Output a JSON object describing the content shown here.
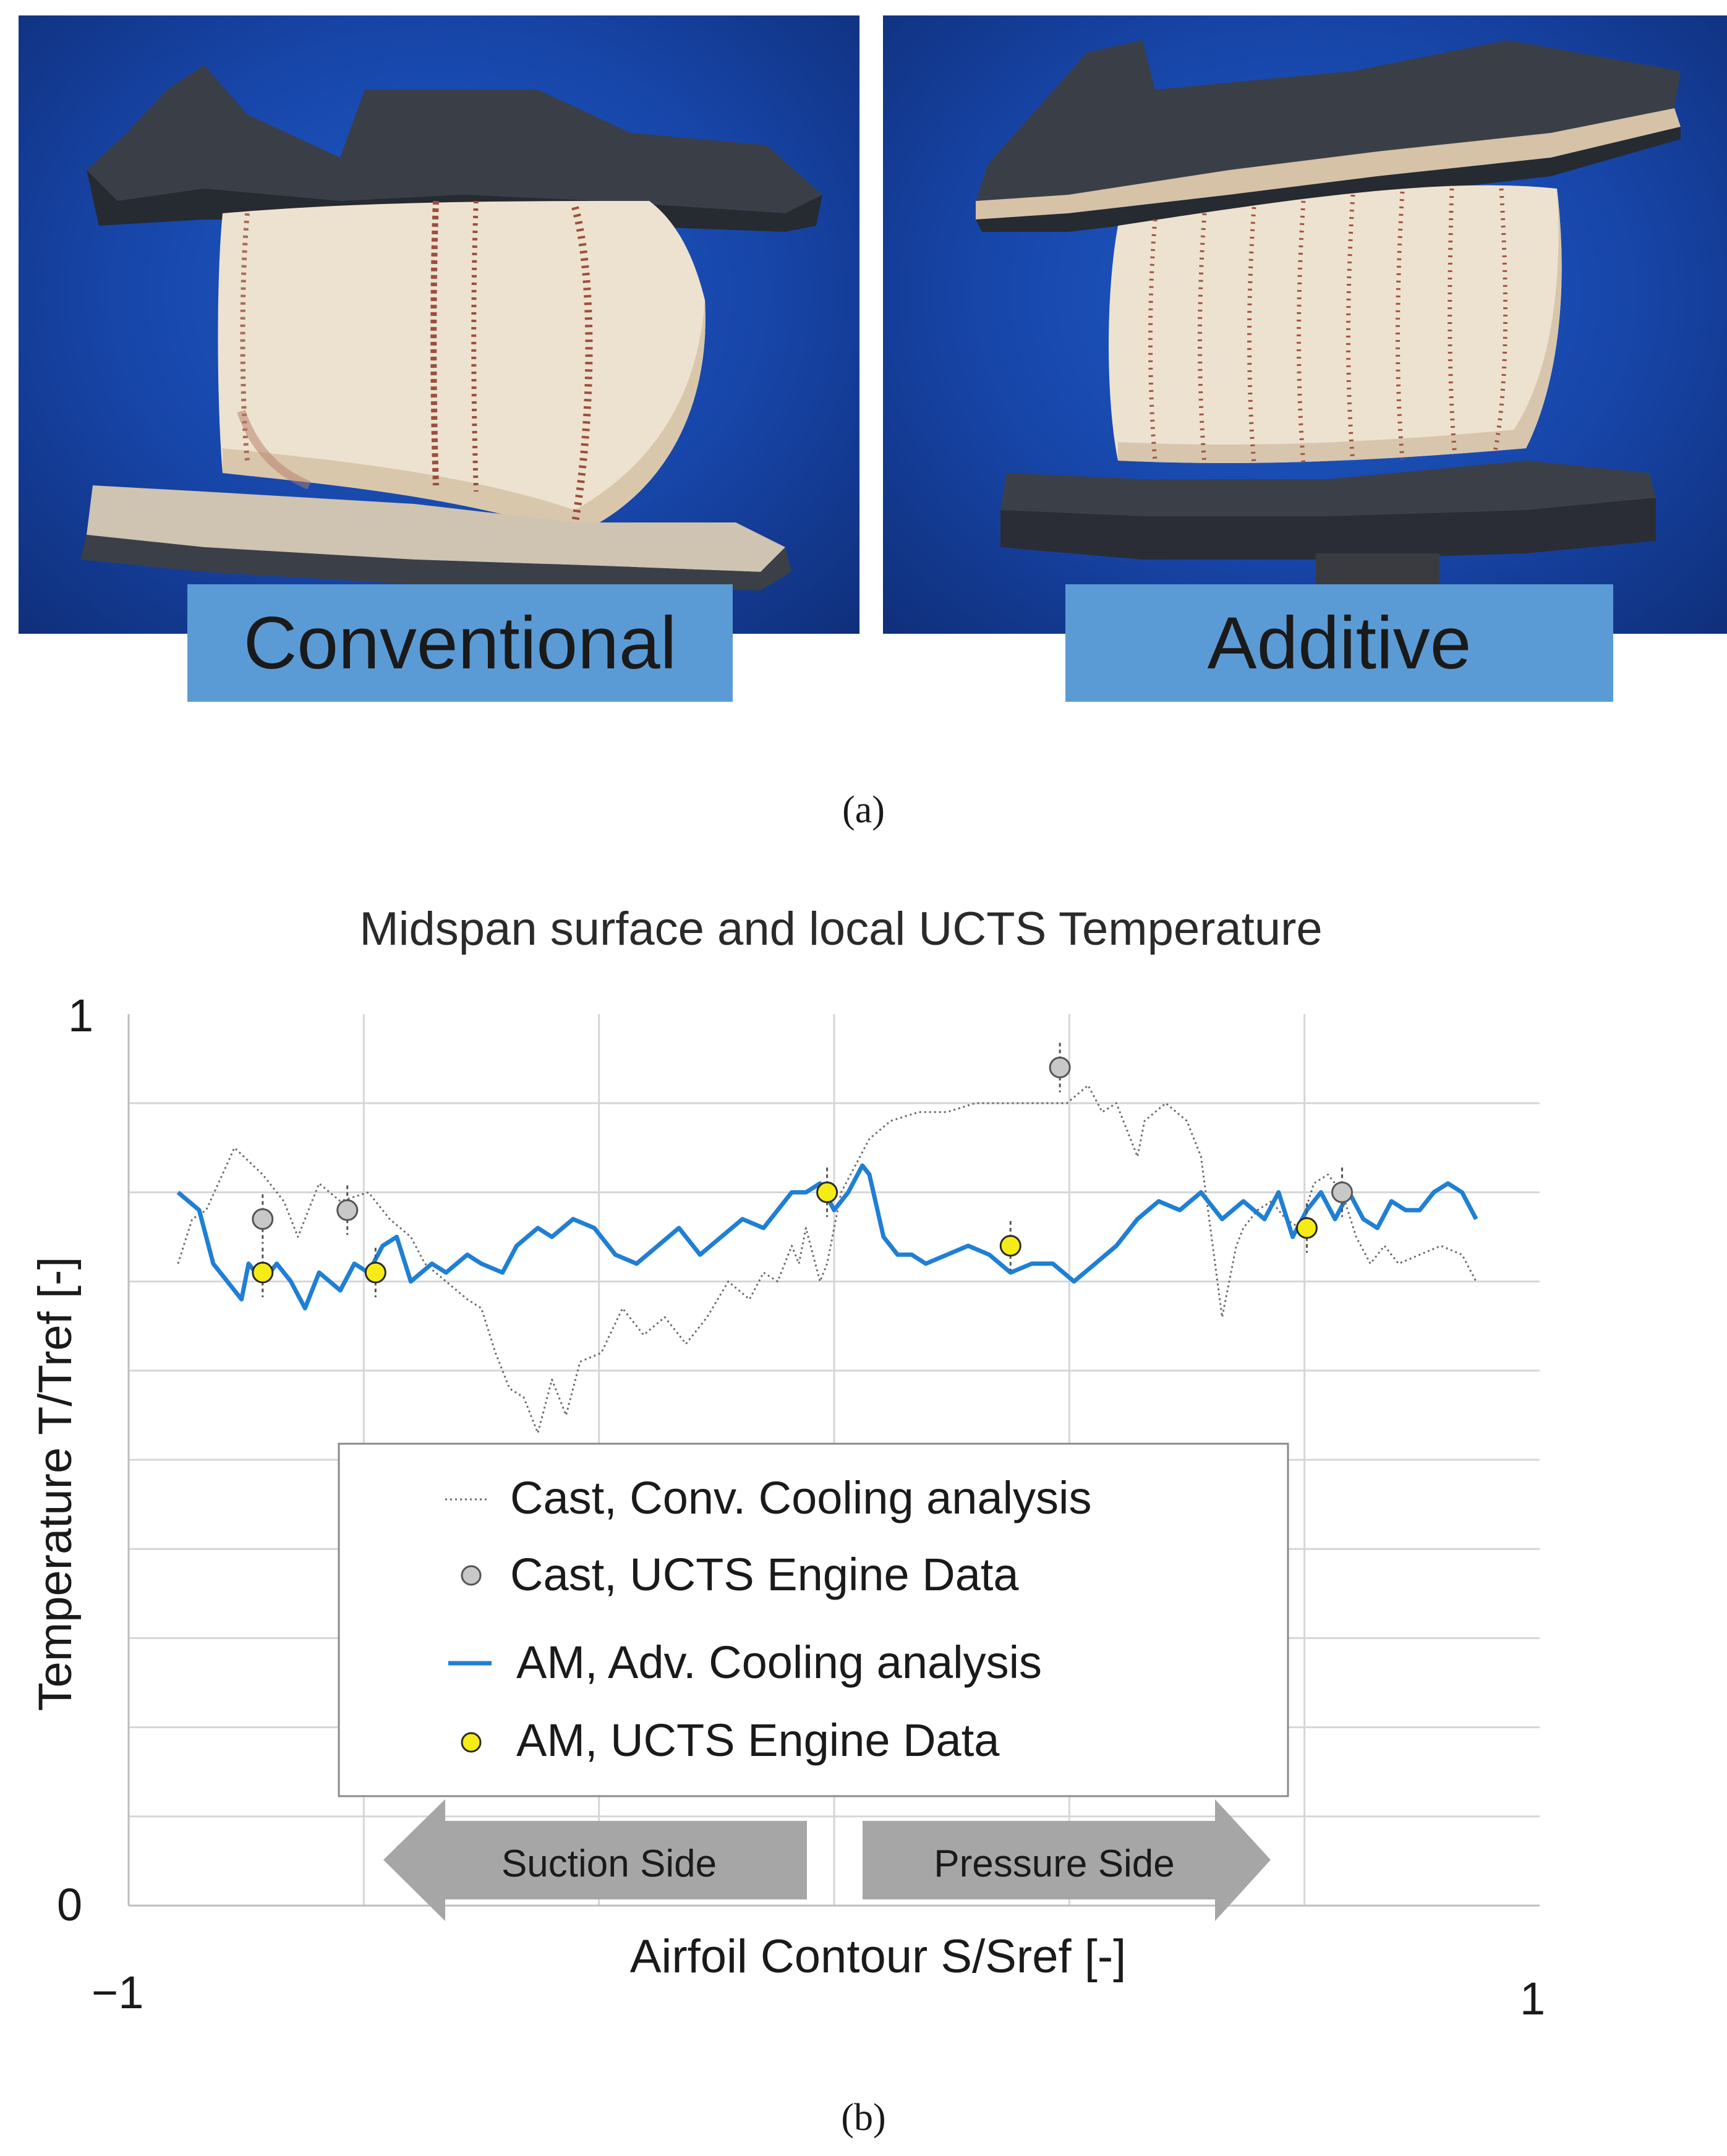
{
  "panel_a": {
    "labels": [
      "Conventional",
      "Additive"
    ],
    "caption": "(a)"
  },
  "panel_b": {
    "caption": "(b)"
  },
  "chart_data": {
    "type": "line",
    "title": "Midspan surface and local UCTS Temperature",
    "xlabel": "Airfoil Contour S/Sref [-]",
    "ylabel": "Temperature T/Tref [-]",
    "xlim": [
      -1,
      1
    ],
    "ylim": [
      0,
      1
    ],
    "x_tick_labels": [
      "−1",
      "1"
    ],
    "y_tick_labels": [
      "0",
      "1"
    ],
    "grid": true,
    "legend_position": "lower-center",
    "annotations": [
      {
        "text": "Suction Side",
        "direction": "left"
      },
      {
        "text": "Pressure Side",
        "direction": "right"
      }
    ],
    "series": [
      {
        "name": "Cast, Conv. Cooling analysis",
        "kind": "line",
        "style": "dotted",
        "color": "#6b6b6b",
        "x": [
          -0.93,
          -0.91,
          -0.89,
          -0.85,
          -0.81,
          -0.78,
          -0.76,
          -0.73,
          -0.7,
          -0.66,
          -0.63,
          -0.6,
          -0.58,
          -0.55,
          -0.52,
          -0.5,
          -0.48,
          -0.46,
          -0.44,
          -0.42,
          -0.4,
          -0.38,
          -0.36,
          -0.33,
          -0.3,
          -0.27,
          -0.24,
          -0.21,
          -0.18,
          -0.15,
          -0.12,
          -0.1,
          -0.08,
          -0.06,
          -0.05,
          -0.04,
          -0.03,
          -0.02,
          -0.01,
          0.0,
          0.01,
          0.03,
          0.05,
          0.08,
          0.12,
          0.16,
          0.2,
          0.25,
          0.3,
          0.33,
          0.36,
          0.38,
          0.4,
          0.42,
          0.43,
          0.44,
          0.47,
          0.5,
          0.52,
          0.54,
          0.55,
          0.56,
          0.57,
          0.58,
          0.6,
          0.62,
          0.64,
          0.66,
          0.68,
          0.7,
          0.72,
          0.74,
          0.76,
          0.78,
          0.8,
          0.83,
          0.86,
          0.89,
          0.91
        ],
        "values": [
          0.72,
          0.77,
          0.78,
          0.85,
          0.82,
          0.79,
          0.75,
          0.81,
          0.79,
          0.8,
          0.77,
          0.75,
          0.72,
          0.7,
          0.68,
          0.67,
          0.62,
          0.58,
          0.57,
          0.53,
          0.59,
          0.55,
          0.61,
          0.62,
          0.67,
          0.64,
          0.66,
          0.63,
          0.66,
          0.7,
          0.68,
          0.71,
          0.7,
          0.74,
          0.72,
          0.76,
          0.73,
          0.7,
          0.72,
          0.76,
          0.8,
          0.83,
          0.86,
          0.88,
          0.89,
          0.89,
          0.9,
          0.9,
          0.9,
          0.9,
          0.92,
          0.89,
          0.9,
          0.86,
          0.84,
          0.88,
          0.9,
          0.88,
          0.84,
          0.72,
          0.66,
          0.7,
          0.74,
          0.76,
          0.78,
          0.79,
          0.77,
          0.76,
          0.81,
          0.82,
          0.8,
          0.75,
          0.72,
          0.74,
          0.72,
          0.73,
          0.74,
          0.73,
          0.7
        ]
      },
      {
        "name": "Cast, UCTS Engine Data",
        "kind": "points",
        "color": "#c8c8c8",
        "x": [
          -0.81,
          -0.69,
          0.32,
          0.72
        ],
        "values": [
          0.77,
          0.78,
          0.94,
          0.8
        ]
      },
      {
        "name": "AM, Adv. Cooling analysis",
        "kind": "line",
        "style": "solid",
        "color": "#1f7fd4",
        "x": [
          -0.93,
          -0.9,
          -0.88,
          -0.86,
          -0.84,
          -0.83,
          -0.81,
          -0.79,
          -0.77,
          -0.75,
          -0.73,
          -0.7,
          -0.68,
          -0.66,
          -0.64,
          -0.62,
          -0.6,
          -0.57,
          -0.55,
          -0.52,
          -0.5,
          -0.47,
          -0.45,
          -0.42,
          -0.4,
          -0.37,
          -0.34,
          -0.31,
          -0.28,
          -0.25,
          -0.22,
          -0.19,
          -0.16,
          -0.13,
          -0.1,
          -0.08,
          -0.06,
          -0.04,
          -0.02,
          0.0,
          0.02,
          0.04,
          0.05,
          0.07,
          0.09,
          0.11,
          0.13,
          0.16,
          0.19,
          0.22,
          0.25,
          0.28,
          0.31,
          0.34,
          0.37,
          0.4,
          0.43,
          0.46,
          0.49,
          0.52,
          0.55,
          0.58,
          0.61,
          0.63,
          0.65,
          0.67,
          0.69,
          0.71,
          0.73,
          0.75,
          0.77,
          0.79,
          0.81,
          0.83,
          0.85,
          0.87,
          0.89,
          0.91
        ],
        "values": [
          0.8,
          0.78,
          0.72,
          0.7,
          0.68,
          0.72,
          0.7,
          0.72,
          0.7,
          0.67,
          0.71,
          0.69,
          0.72,
          0.71,
          0.74,
          0.75,
          0.7,
          0.72,
          0.71,
          0.73,
          0.72,
          0.71,
          0.74,
          0.76,
          0.75,
          0.77,
          0.76,
          0.73,
          0.72,
          0.74,
          0.76,
          0.73,
          0.75,
          0.77,
          0.76,
          0.78,
          0.8,
          0.8,
          0.81,
          0.78,
          0.8,
          0.83,
          0.82,
          0.75,
          0.73,
          0.73,
          0.72,
          0.73,
          0.74,
          0.73,
          0.71,
          0.72,
          0.72,
          0.7,
          0.72,
          0.74,
          0.77,
          0.79,
          0.78,
          0.8,
          0.77,
          0.79,
          0.77,
          0.8,
          0.75,
          0.78,
          0.8,
          0.77,
          0.8,
          0.77,
          0.76,
          0.79,
          0.78,
          0.78,
          0.8,
          0.81,
          0.8,
          0.77
        ]
      },
      {
        "name": "AM, UCTS Engine Data",
        "kind": "points",
        "color": "#f5ec16",
        "x": [
          -0.81,
          -0.65,
          -0.01,
          0.25,
          0.67
        ],
        "values": [
          0.71,
          0.71,
          0.8,
          0.74,
          0.76
        ]
      }
    ]
  }
}
